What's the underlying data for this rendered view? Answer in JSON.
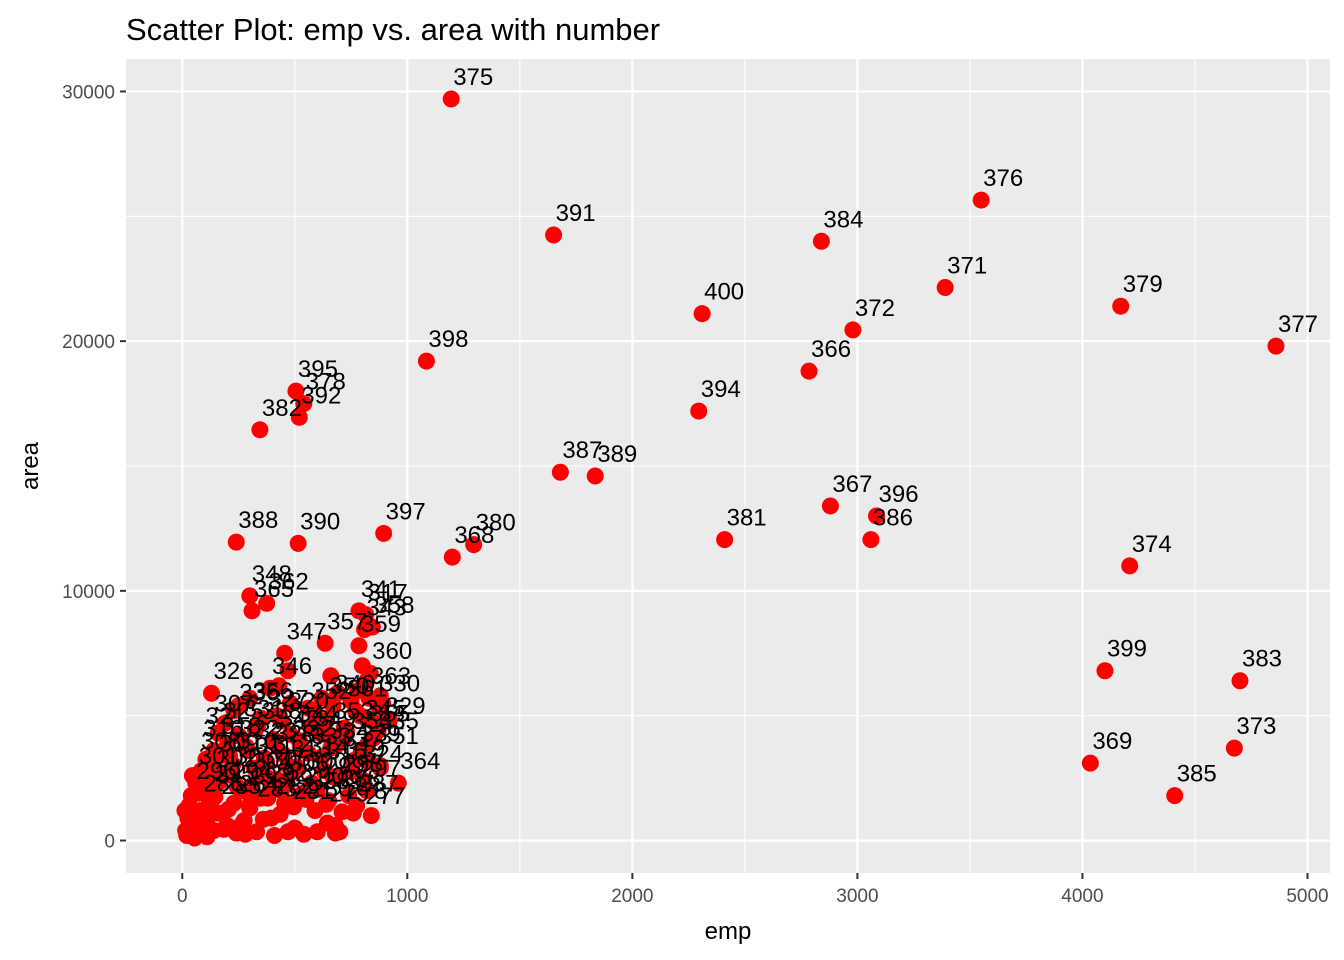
{
  "chart_data": {
    "type": "scatter",
    "title": "Scatter Plot: emp vs. area with number",
    "xlabel": "emp",
    "ylabel": "area",
    "xlim": [
      -250,
      5100
    ],
    "ylim": [
      -1300,
      31300
    ],
    "x_ticks": [
      0,
      1000,
      2000,
      3000,
      4000,
      5000
    ],
    "y_ticks": [
      0,
      10000,
      20000,
      30000
    ],
    "grid": true,
    "legend": "none",
    "colors": {
      "panel": "#EBEBEB",
      "grid_major": "#FFFFFF",
      "point": "#FF0000",
      "text": "#000000",
      "tick": "#4D4D4D"
    },
    "labeled_points": [
      {
        "label": "375",
        "x": 1195,
        "y": 29700
      },
      {
        "label": "376",
        "x": 3550,
        "y": 25650
      },
      {
        "label": "391",
        "x": 1650,
        "y": 24250
      },
      {
        "label": "384",
        "x": 2840,
        "y": 24000
      },
      {
        "label": "371",
        "x": 3390,
        "y": 22150
      },
      {
        "label": "379",
        "x": 4170,
        "y": 21400
      },
      {
        "label": "400",
        "x": 2310,
        "y": 21100
      },
      {
        "label": "372",
        "x": 2980,
        "y": 20450
      },
      {
        "label": "377",
        "x": 4860,
        "y": 19800
      },
      {
        "label": "398",
        "x": 1085,
        "y": 19200
      },
      {
        "label": "366",
        "x": 2785,
        "y": 18800
      },
      {
        "label": "395",
        "x": 505,
        "y": 18000
      },
      {
        "label": "378",
        "x": 540,
        "y": 17500
      },
      {
        "label": "392",
        "x": 520,
        "y": 16950
      },
      {
        "label": "394",
        "x": 2295,
        "y": 17200
      },
      {
        "label": "382",
        "x": 345,
        "y": 16450
      },
      {
        "label": "387",
        "x": 1680,
        "y": 14750
      },
      {
        "label": "389",
        "x": 1835,
        "y": 14600
      },
      {
        "label": "367",
        "x": 2880,
        "y": 13400
      },
      {
        "label": "396",
        "x": 3085,
        "y": 13000
      },
      {
        "label": "386",
        "x": 3060,
        "y": 12050
      },
      {
        "label": "397",
        "x": 895,
        "y": 12300
      },
      {
        "label": "381",
        "x": 2410,
        "y": 12050
      },
      {
        "label": "388",
        "x": 240,
        "y": 11950
      },
      {
        "label": "390",
        "x": 515,
        "y": 11900
      },
      {
        "label": "380",
        "x": 1295,
        "y": 11850
      },
      {
        "label": "368",
        "x": 1200,
        "y": 11350
      },
      {
        "label": "374",
        "x": 4210,
        "y": 11000
      },
      {
        "label": "348",
        "x": 300,
        "y": 9800
      },
      {
        "label": "362",
        "x": 375,
        "y": 9500
      },
      {
        "label": "365",
        "x": 310,
        "y": 9200
      },
      {
        "label": "341",
        "x": 785,
        "y": 9200
      },
      {
        "label": "317",
        "x": 815,
        "y": 9050
      },
      {
        "label": "343",
        "x": 810,
        "y": 8450
      },
      {
        "label": "358",
        "x": 845,
        "y": 8550
      },
      {
        "label": "347",
        "x": 455,
        "y": 7500
      },
      {
        "label": "357",
        "x": 635,
        "y": 7900
      },
      {
        "label": "359",
        "x": 785,
        "y": 7800
      },
      {
        "label": "360",
        "x": 835,
        "y": 6700
      },
      {
        "label": "326",
        "x": 130,
        "y": 5900
      },
      {
        "label": "346",
        "x": 390,
        "y": 6100
      },
      {
        "label": "363",
        "x": 830,
        "y": 5700
      },
      {
        "label": "340",
        "x": 670,
        "y": 5400
      },
      {
        "label": "330",
        "x": 870,
        "y": 5400
      },
      {
        "label": "399",
        "x": 4100,
        "y": 6800
      },
      {
        "label": "383",
        "x": 4700,
        "y": 6400
      },
      {
        "label": "373",
        "x": 4675,
        "y": 3700
      },
      {
        "label": "369",
        "x": 4035,
        "y": 3100
      },
      {
        "label": "385",
        "x": 4410,
        "y": 1800
      },
      {
        "label": "364",
        "x": 960,
        "y": 2300
      }
    ],
    "dense_cluster_points": [
      [
        20,
        200
      ],
      [
        35,
        500
      ],
      [
        50,
        900
      ],
      [
        60,
        300
      ],
      [
        80,
        1200
      ],
      [
        95,
        700
      ],
      [
        110,
        150
      ],
      [
        120,
        1600
      ],
      [
        140,
        400
      ],
      [
        150,
        2200
      ],
      [
        30,
        1400
      ],
      [
        45,
        2600
      ],
      [
        70,
        1900
      ],
      [
        85,
        2800
      ],
      [
        100,
        2400
      ],
      [
        130,
        3100
      ],
      [
        160,
        1100
      ],
      [
        180,
        2700
      ],
      [
        200,
        600
      ],
      [
        210,
        3400
      ],
      [
        230,
        1500
      ],
      [
        250,
        4200
      ],
      [
        260,
        2000
      ],
      [
        275,
        800
      ],
      [
        290,
        3600
      ],
      [
        300,
        1300
      ],
      [
        320,
        2900
      ],
      [
        335,
        4600
      ],
      [
        350,
        1700
      ],
      [
        365,
        3300
      ],
      [
        380,
        2500
      ],
      [
        395,
        900
      ],
      [
        410,
        3900
      ],
      [
        425,
        2100
      ],
      [
        440,
        4800
      ],
      [
        455,
        1500
      ],
      [
        470,
        3000
      ],
      [
        485,
        2700
      ],
      [
        500,
        500
      ],
      [
        520,
        4000
      ],
      [
        540,
        1900
      ],
      [
        560,
        3500
      ],
      [
        575,
        2300
      ],
      [
        590,
        1200
      ],
      [
        610,
        4300
      ],
      [
        630,
        2800
      ],
      [
        645,
        700
      ],
      [
        660,
        3700
      ],
      [
        680,
        300
      ],
      [
        700,
        2600
      ],
      [
        720,
        4500
      ],
      [
        740,
        1800
      ],
      [
        760,
        3200
      ],
      [
        775,
        1400
      ],
      [
        790,
        5000
      ],
      [
        805,
        2400
      ],
      [
        820,
        3800
      ],
      [
        840,
        1000
      ],
      [
        860,
        4700
      ],
      [
        880,
        2900
      ],
      [
        55,
        100
      ],
      [
        75,
        600
      ],
      [
        90,
        250
      ],
      [
        115,
        950
      ],
      [
        145,
        1750
      ],
      [
        165,
        2350
      ],
      [
        185,
        450
      ],
      [
        205,
        1250
      ],
      [
        225,
        3050
      ],
      [
        245,
        2150
      ],
      [
        265,
        650
      ],
      [
        285,
        3750
      ],
      [
        305,
        1550
      ],
      [
        325,
        4450
      ],
      [
        345,
        2650
      ],
      [
        360,
        850
      ],
      [
        375,
        3150
      ],
      [
        390,
        1950
      ],
      [
        405,
        4050
      ],
      [
        420,
        2450
      ],
      [
        435,
        1050
      ],
      [
        450,
        3450
      ],
      [
        465,
        2250
      ],
      [
        480,
        4250
      ],
      [
        495,
        1350
      ],
      [
        510,
        2950
      ],
      [
        530,
        3650
      ],
      [
        550,
        1650
      ],
      [
        570,
        4550
      ],
      [
        600,
        2050
      ],
      [
        620,
        3350
      ],
      [
        640,
        1450
      ],
      [
        655,
        4150
      ],
      [
        670,
        2550
      ],
      [
        690,
        3850
      ],
      [
        710,
        1150
      ],
      [
        730,
        4350
      ],
      [
        750,
        2750
      ],
      [
        770,
        5200
      ],
      [
        795,
        3550
      ],
      [
        815,
        4900
      ],
      [
        830,
        3150
      ],
      [
        850,
        4100
      ],
      [
        870,
        4400
      ],
      [
        890,
        5500
      ],
      [
        230,
        5200
      ],
      [
        190,
        4700
      ],
      [
        170,
        3400
      ],
      [
        125,
        2850
      ],
      [
        105,
        3250
      ],
      [
        65,
        2500
      ],
      [
        40,
        1800
      ],
      [
        25,
        900
      ],
      [
        15,
        400
      ],
      [
        12,
        1200
      ],
      [
        240,
        300
      ],
      [
        280,
        250
      ],
      [
        330,
        350
      ],
      [
        410,
        200
      ],
      [
        470,
        350
      ],
      [
        540,
        250
      ],
      [
        600,
        350
      ],
      [
        680,
        600
      ],
      [
        700,
        350
      ],
      [
        880,
        3000
      ],
      [
        920,
        4800
      ],
      [
        300,
        5700
      ],
      [
        250,
        5400
      ],
      [
        560,
        5300
      ],
      [
        620,
        5700
      ],
      [
        660,
        6600
      ],
      [
        690,
        5900
      ],
      [
        780,
        6000
      ],
      [
        720,
        4100
      ],
      [
        350,
        4900
      ],
      [
        420,
        5000
      ],
      [
        480,
        5500
      ],
      [
        590,
        5100
      ],
      [
        640,
        4800
      ],
      [
        750,
        5600
      ],
      [
        160,
        4300
      ],
      [
        200,
        3800
      ],
      [
        220,
        2600
      ],
      [
        310,
        2200
      ],
      [
        380,
        1700
      ],
      [
        440,
        2000
      ],
      [
        520,
        1800
      ],
      [
        650,
        1600
      ],
      [
        760,
        1100
      ],
      [
        820,
        2000
      ],
      [
        430,
        6200
      ],
      [
        470,
        6800
      ],
      [
        820,
        6400
      ],
      [
        800,
        7000
      ],
      [
        880,
        5800
      ],
      [
        60,
        2300
      ],
      [
        80,
        2700
      ],
      [
        100,
        2000
      ],
      [
        120,
        2500
      ],
      [
        140,
        3600
      ]
    ],
    "dense_cluster_labels": [
      {
        "label": "307",
        "x": 130,
        "y": 4600
      },
      {
        "label": "336",
        "x": 240,
        "y": 5050
      },
      {
        "label": "356",
        "x": 300,
        "y": 5100
      },
      {
        "label": "327",
        "x": 370,
        "y": 4800
      },
      {
        "label": "320",
        "x": 460,
        "y": 4700
      },
      {
        "label": "352",
        "x": 560,
        "y": 5100
      },
      {
        "label": "350",
        "x": 640,
        "y": 5300
      },
      {
        "label": "361",
        "x": 720,
        "y": 5200
      },
      {
        "label": "329",
        "x": 890,
        "y": 4500
      },
      {
        "label": "345",
        "x": 800,
        "y": 4400
      },
      {
        "label": "355",
        "x": 820,
        "y": 4200
      },
      {
        "label": "335",
        "x": 860,
        "y": 3900
      },
      {
        "label": "321",
        "x": 90,
        "y": 4100
      },
      {
        "label": "325",
        "x": 170,
        "y": 4300
      },
      {
        "label": "331",
        "x": 260,
        "y": 4400
      },
      {
        "label": "338",
        "x": 340,
        "y": 4300
      },
      {
        "label": "342",
        "x": 420,
        "y": 4000
      },
      {
        "label": "344",
        "x": 500,
        "y": 4200
      },
      {
        "label": "349",
        "x": 580,
        "y": 4000
      },
      {
        "label": "353",
        "x": 660,
        "y": 4300
      },
      {
        "label": "354",
        "x": 740,
        "y": 3900
      },
      {
        "label": "316",
        "x": 80,
        "y": 3600
      },
      {
        "label": "318",
        "x": 160,
        "y": 3700
      },
      {
        "label": "322",
        "x": 240,
        "y": 3600
      },
      {
        "label": "323",
        "x": 320,
        "y": 3500
      },
      {
        "label": "328",
        "x": 400,
        "y": 3400
      },
      {
        "label": "332",
        "x": 480,
        "y": 3600
      },
      {
        "label": "333",
        "x": 560,
        "y": 3300
      },
      {
        "label": "334",
        "x": 640,
        "y": 3500
      },
      {
        "label": "337",
        "x": 700,
        "y": 3200
      },
      {
        "label": "339",
        "x": 780,
        "y": 3400
      },
      {
        "label": "351",
        "x": 860,
        "y": 3300
      },
      {
        "label": "308",
        "x": 70,
        "y": 3100
      },
      {
        "label": "309",
        "x": 150,
        "y": 3000
      },
      {
        "label": "310",
        "x": 230,
        "y": 3100
      },
      {
        "label": "311",
        "x": 310,
        "y": 2900
      },
      {
        "label": "312",
        "x": 390,
        "y": 3000
      },
      {
        "label": "313",
        "x": 470,
        "y": 2800
      },
      {
        "label": "314",
        "x": 550,
        "y": 2900
      },
      {
        "label": "315",
        "x": 630,
        "y": 2700
      },
      {
        "label": "319",
        "x": 710,
        "y": 2800
      },
      {
        "label": "324",
        "x": 790,
        "y": 2600
      },
      {
        "label": "301",
        "x": 60,
        "y": 2500
      },
      {
        "label": "302",
        "x": 140,
        "y": 2400
      },
      {
        "label": "303",
        "x": 220,
        "y": 2500
      },
      {
        "label": "304",
        "x": 300,
        "y": 2300
      },
      {
        "label": "305",
        "x": 380,
        "y": 2400
      },
      {
        "label": "306",
        "x": 460,
        "y": 2200
      },
      {
        "label": "300",
        "x": 540,
        "y": 2300
      },
      {
        "label": "299",
        "x": 620,
        "y": 2100
      },
      {
        "label": "298",
        "x": 700,
        "y": 2200
      },
      {
        "label": "297",
        "x": 780,
        "y": 2000
      },
      {
        "label": "296",
        "x": 50,
        "y": 1900
      },
      {
        "label": "295",
        "x": 130,
        "y": 1800
      },
      {
        "label": "294",
        "x": 210,
        "y": 1900
      },
      {
        "label": "293",
        "x": 290,
        "y": 1700
      },
      {
        "label": "292",
        "x": 370,
        "y": 1800
      },
      {
        "label": "291",
        "x": 450,
        "y": 1600
      },
      {
        "label": "290",
        "x": 530,
        "y": 1700
      },
      {
        "label": "289",
        "x": 610,
        "y": 1500
      },
      {
        "label": "288",
        "x": 690,
        "y": 1600
      },
      {
        "label": "287",
        "x": 770,
        "y": 1400
      },
      {
        "label": "286",
        "x": 80,
        "y": 1400
      },
      {
        "label": "285",
        "x": 160,
        "y": 1300
      },
      {
        "label": "284",
        "x": 240,
        "y": 1400
      },
      {
        "label": "283",
        "x": 320,
        "y": 1200
      },
      {
        "label": "282",
        "x": 400,
        "y": 1300
      },
      {
        "label": "281",
        "x": 480,
        "y": 1100
      },
      {
        "label": "280",
        "x": 560,
        "y": 1200
      },
      {
        "label": "279",
        "x": 640,
        "y": 1000
      },
      {
        "label": "278",
        "x": 720,
        "y": 1100
      },
      {
        "label": "277",
        "x": 800,
        "y": 900
      }
    ]
  }
}
